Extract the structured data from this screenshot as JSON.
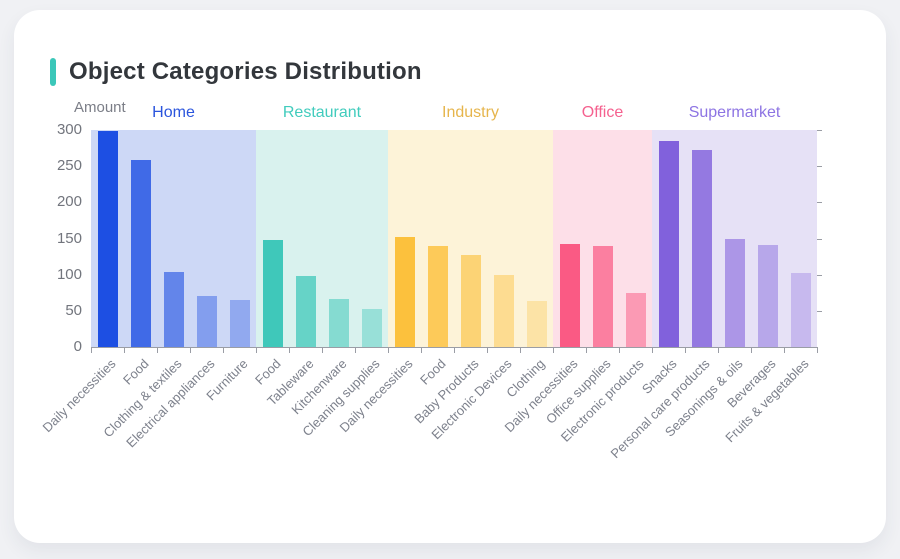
{
  "page": {
    "background_color": "#f0f1f4",
    "card_color": "#ffffff",
    "accent_color": "#3bc7b9"
  },
  "chart_data": {
    "type": "bar",
    "title": "Object Categories Distribution",
    "ylabel": "Amount",
    "ylim": [
      0,
      300
    ],
    "yticks": [
      0,
      50,
      100,
      150,
      200,
      250,
      300
    ],
    "legend_position": "group headers above plot",
    "grid": false,
    "groups": [
      {
        "name": "Home",
        "color": "#1d4fe3",
        "band_color": "#cdd8f6",
        "label_color": "#2b55dd",
        "opacities": [
          1,
          0.8,
          0.6,
          0.42,
          0.34
        ],
        "items": [
          {
            "label": "Daily necessities",
            "value": 298
          },
          {
            "label": "Food",
            "value": 258
          },
          {
            "label": "Clothing & textiles",
            "value": 103
          },
          {
            "label": "Electrical appliances",
            "value": 70
          },
          {
            "label": "Furniture",
            "value": 65
          }
        ]
      },
      {
        "name": "Restaurant",
        "color": "#3fc8ba",
        "band_color": "#d9f2ee",
        "label_color": "#41ccbd",
        "opacities": [
          1,
          0.75,
          0.55,
          0.42
        ],
        "items": [
          {
            "label": "Food",
            "value": 148
          },
          {
            "label": "Tableware",
            "value": 98
          },
          {
            "label": "Kitchenware",
            "value": 66
          },
          {
            "label": "Cleaning supplies",
            "value": 52
          }
        ]
      },
      {
        "name": "Industry",
        "color": "#fcc13d",
        "band_color": "#fdf3d8",
        "label_color": "#e6b54c",
        "opacities": [
          1,
          0.82,
          0.64,
          0.46,
          0.32
        ],
        "items": [
          {
            "label": "Daily necessities",
            "value": 152
          },
          {
            "label": "Food",
            "value": 140
          },
          {
            "label": "Baby Products",
            "value": 127
          },
          {
            "label": "Electronic Devices",
            "value": 100
          },
          {
            "label": "Clothing",
            "value": 64
          }
        ]
      },
      {
        "name": "Office",
        "color": "#fa5a84",
        "band_color": "#fddfe8",
        "label_color": "#f5618f",
        "opacities": [
          1,
          0.72,
          0.52
        ],
        "items": [
          {
            "label": "Daily necessities",
            "value": 143
          },
          {
            "label": "Office supplies",
            "value": 140
          },
          {
            "label": "Electronic products",
            "value": 75
          }
        ]
      },
      {
        "name": "Supermarket",
        "color": "#8161dc",
        "band_color": "#e6e1f6",
        "label_color": "#8d74e3",
        "opacities": [
          1,
          0.82,
          0.58,
          0.46,
          0.31
        ],
        "items": [
          {
            "label": "Snacks",
            "value": 285
          },
          {
            "label": "Personal care products",
            "value": 272
          },
          {
            "label": "Seasonings & oils",
            "value": 149
          },
          {
            "label": "Beverages",
            "value": 141
          },
          {
            "label": "Fruits & vegetables",
            "value": 102
          }
        ]
      }
    ]
  }
}
